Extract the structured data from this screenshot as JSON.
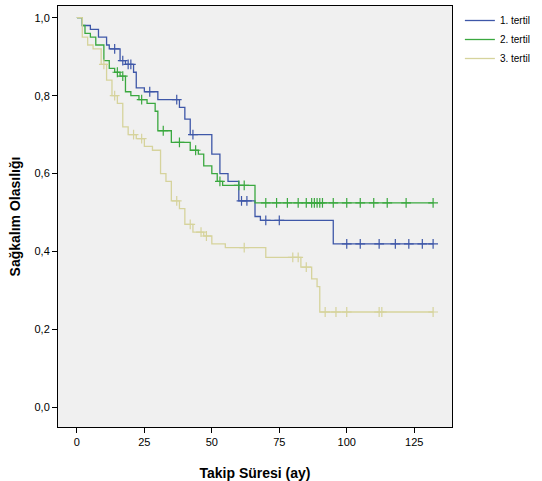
{
  "chart_data": {
    "type": "line",
    "line_style": "step",
    "marker": "cross",
    "x_label": "Takip Süresi (ay)",
    "y_label": "Sağkalım Olasılığı",
    "xlim": [
      -7,
      139
    ],
    "xticks": [
      0,
      25,
      50,
      75,
      100,
      125
    ],
    "ylim": [
      -0.05,
      1.03
    ],
    "yticks": [
      {
        "value": 0.0,
        "label": "0,0"
      },
      {
        "value": 0.2,
        "label": "0,2"
      },
      {
        "value": 0.4,
        "label": "0,4"
      },
      {
        "value": 0.6,
        "label": "0,6"
      },
      {
        "value": 0.8,
        "label": "0,8"
      },
      {
        "value": 1.0,
        "label": "1,0"
      }
    ],
    "grid": false,
    "legend": "top right",
    "series": [
      {
        "name": "1. tertil",
        "color": "#3e57a8",
        "x": [
          0,
          2,
          5,
          8,
          11,
          12,
          16,
          18,
          21,
          22,
          25,
          30,
          38,
          40,
          42,
          50,
          53,
          56,
          60,
          66,
          68,
          95,
          132
        ],
        "values": [
          1.0,
          0.98,
          0.97,
          0.95,
          0.93,
          0.92,
          0.89,
          0.88,
          0.86,
          0.82,
          0.81,
          0.79,
          0.77,
          0.74,
          0.7,
          0.65,
          0.6,
          0.58,
          0.53,
          0.49,
          0.48,
          0.42,
          0.42
        ],
        "censored_x": [
          14,
          17,
          19,
          20,
          27,
          37,
          43,
          61,
          63,
          70,
          75,
          100,
          105,
          112,
          118,
          123,
          128,
          132
        ],
        "censored_values": [
          0.92,
          0.89,
          0.88,
          0.88,
          0.81,
          0.79,
          0.7,
          0.53,
          0.53,
          0.48,
          0.48,
          0.42,
          0.42,
          0.42,
          0.42,
          0.42,
          0.42,
          0.42
        ]
      },
      {
        "name": "2. tertil",
        "color": "#3aa83f",
        "x": [
          0,
          2,
          3,
          5,
          7,
          10,
          12,
          14,
          16,
          18,
          20,
          23,
          26,
          29,
          30,
          35,
          42,
          45,
          47,
          50,
          52,
          54,
          66,
          132
        ],
        "values": [
          1.0,
          0.98,
          0.96,
          0.95,
          0.93,
          0.89,
          0.87,
          0.86,
          0.85,
          0.81,
          0.8,
          0.79,
          0.78,
          0.76,
          0.71,
          0.68,
          0.66,
          0.65,
          0.62,
          0.6,
          0.58,
          0.57,
          0.525,
          0.525
        ],
        "censored_x": [
          15,
          17,
          24,
          32,
          38,
          44,
          53,
          60,
          62,
          70,
          74,
          78,
          82,
          85,
          87,
          88,
          89,
          90,
          91,
          95,
          100,
          105,
          110,
          115,
          122,
          132
        ],
        "censored_values": [
          0.86,
          0.85,
          0.79,
          0.71,
          0.68,
          0.66,
          0.58,
          0.57,
          0.57,
          0.525,
          0.525,
          0.525,
          0.525,
          0.525,
          0.525,
          0.525,
          0.525,
          0.525,
          0.525,
          0.525,
          0.525,
          0.525,
          0.525,
          0.525,
          0.525,
          0.525
        ]
      },
      {
        "name": "3. tertil",
        "color": "#d6d39c",
        "x": [
          0,
          2,
          4,
          6,
          9,
          11,
          13,
          15,
          17,
          19,
          22,
          25,
          28,
          31,
          33,
          35,
          38,
          40,
          43,
          47,
          50,
          55,
          70,
          83,
          87,
          89,
          90,
          132
        ],
        "values": [
          1.0,
          0.95,
          0.93,
          0.92,
          0.88,
          0.84,
          0.8,
          0.78,
          0.72,
          0.7,
          0.69,
          0.67,
          0.66,
          0.6,
          0.58,
          0.53,
          0.51,
          0.47,
          0.45,
          0.44,
          0.42,
          0.41,
          0.385,
          0.36,
          0.33,
          0.31,
          0.245,
          0.245
        ],
        "censored_x": [
          10,
          14,
          21,
          24,
          37,
          42,
          46,
          48,
          62,
          80,
          82,
          85,
          92,
          96,
          100,
          112,
          113,
          132
        ],
        "censored_values": [
          0.88,
          0.8,
          0.7,
          0.69,
          0.53,
          0.47,
          0.45,
          0.44,
          0.41,
          0.385,
          0.385,
          0.36,
          0.245,
          0.245,
          0.245,
          0.245,
          0.245,
          0.245
        ]
      }
    ]
  }
}
